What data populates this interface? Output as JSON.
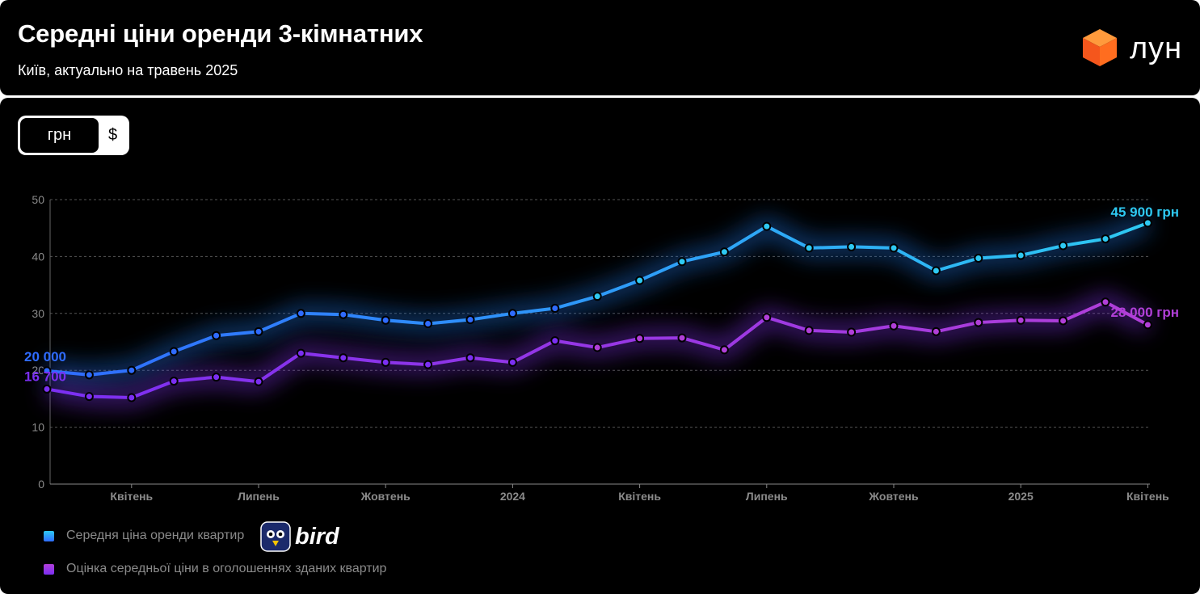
{
  "header": {
    "title": "Середні ціни оренди 3-кімнатних",
    "subtitle": "Київ, актуально на травень 2025",
    "logo_text": "лун",
    "logo_icon": "orange-cube-icon"
  },
  "currency_toggle": {
    "active_label": "грн",
    "inactive_label": "$"
  },
  "badge": {
    "text": "bird",
    "icon": "bird-icon"
  },
  "colors": {
    "background": "#000000",
    "series_1_start": "#2f6bff",
    "series_1_end": "#2ec9f2",
    "series_2_start": "#7b2ff2",
    "series_2_end": "#b13fd8",
    "grid": "#555555",
    "tick": "#8a8a8a"
  },
  "chart_data": {
    "type": "line",
    "x_tick_labels": [
      "Квітень",
      "Липень",
      "Жовтень",
      "2024",
      "Квітень",
      "Липень",
      "Жовтень",
      "2025",
      "Квітень"
    ],
    "x_tick_month_index": [
      2,
      5,
      8,
      11,
      14,
      17,
      20,
      23,
      26
    ],
    "y_ticks": [
      "0",
      "10",
      "20",
      "30",
      "40",
      "50"
    ],
    "ylim": [
      0,
      50
    ],
    "grid": true,
    "legend_position": "bottom-left",
    "series": [
      {
        "name": "Середня ціна оренди квартир",
        "start_label": "20 000",
        "end_label": "45 900 грн",
        "values": [
          19.9,
          19.2,
          20.0,
          23.3,
          26.1,
          26.8,
          30.0,
          29.8,
          28.8,
          28.2,
          28.9,
          30.0,
          30.9,
          33.0,
          35.8,
          39.1,
          40.8,
          45.3,
          41.5,
          41.7,
          41.5,
          37.5,
          39.7,
          40.2,
          41.9,
          43.1,
          45.9
        ]
      },
      {
        "name": "Оцінка середньої ціни в оголошеннях зданих квартир",
        "start_label": "16 700",
        "end_label": "28 000 грн",
        "values": [
          16.7,
          15.4,
          15.2,
          18.1,
          18.8,
          18.0,
          23.0,
          22.2,
          21.4,
          21.0,
          22.2,
          21.4,
          25.2,
          24.0,
          25.6,
          25.7,
          23.6,
          29.3,
          27.0,
          26.7,
          27.8,
          26.8,
          28.4,
          28.8,
          28.7,
          32.0,
          28.0
        ]
      }
    ]
  }
}
